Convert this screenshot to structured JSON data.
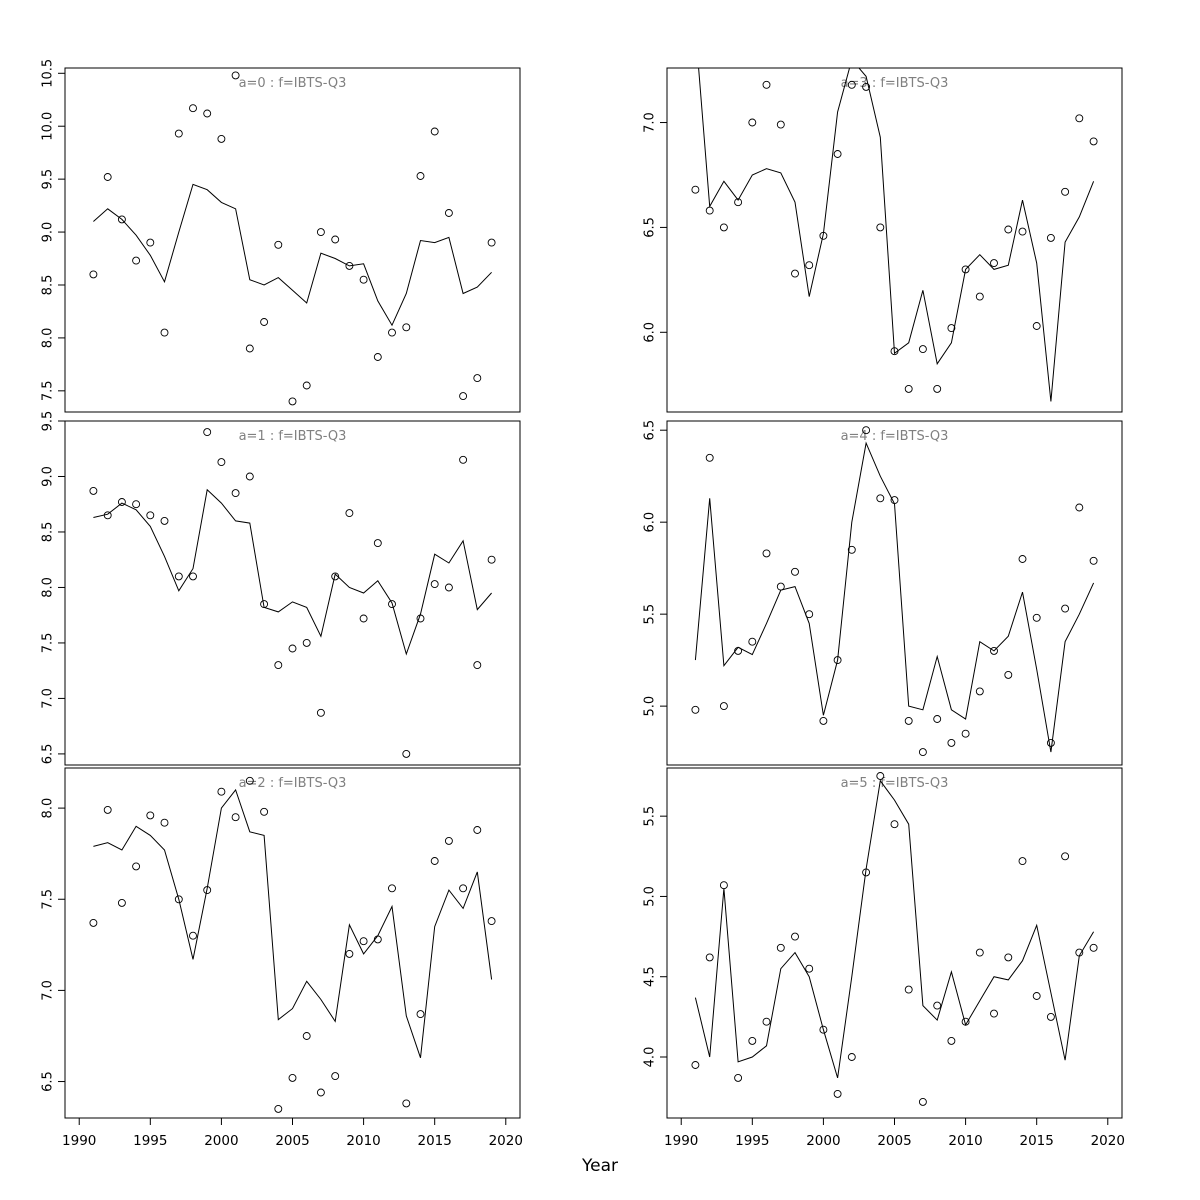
{
  "figure": {
    "background": "#ffffff",
    "line_color": "#000000",
    "point_color": "#000000",
    "title_color": "#808080",
    "axis_color": "#000000"
  },
  "chart_data": {
    "type": "line+scatter",
    "layout": "2 columns x 3 rows, panels ordered a=0..a=2 left column, a=3..a=5 right column",
    "xlabel": "Year",
    "xlim": [
      1989,
      2021
    ],
    "xticks": [
      "1990",
      "1995",
      "2000",
      "2005",
      "2010",
      "2015",
      "2020"
    ],
    "x": [
      1991,
      1992,
      1993,
      1994,
      1995,
      1996,
      1997,
      1998,
      1999,
      2000,
      2001,
      2002,
      2003,
      2004,
      2005,
      2006,
      2007,
      2008,
      2009,
      2010,
      2011,
      2012,
      2013,
      2014,
      2015,
      2016,
      2017,
      2018,
      2019
    ],
    "panels": [
      {
        "id": "a0",
        "title": "a=0 : f=IBTS-Q3",
        "ylim": [
          7.3,
          10.55
        ],
        "yticks": [
          "7.5",
          "8.0",
          "8.5",
          "9.0",
          "9.5",
          "10.0",
          "10.5"
        ],
        "points": [
          8.6,
          9.52,
          9.12,
          8.73,
          8.9,
          8.05,
          9.93,
          10.17,
          10.12,
          9.88,
          10.48,
          7.9,
          8.15,
          8.88,
          7.4,
          7.55,
          9.0,
          8.93,
          8.68,
          8.55,
          7.82,
          8.05,
          8.1,
          9.53,
          9.95,
          9.18,
          7.45,
          7.62,
          8.9
        ],
        "line": [
          9.1,
          9.22,
          9.12,
          8.97,
          8.78,
          8.53,
          9.0,
          9.45,
          9.4,
          9.28,
          9.22,
          8.55,
          8.5,
          8.57,
          8.45,
          8.33,
          8.8,
          8.75,
          8.68,
          8.7,
          8.35,
          8.12,
          8.42,
          8.92,
          8.9,
          8.95,
          8.42,
          8.48,
          8.62
        ]
      },
      {
        "id": "a1",
        "title": "a=1 : f=IBTS-Q3",
        "ylim": [
          6.4,
          9.5
        ],
        "yticks": [
          "6.5",
          "7.0",
          "7.5",
          "8.0",
          "8.5",
          "9.0",
          "9.5"
        ],
        "points": [
          8.87,
          8.65,
          8.77,
          8.75,
          8.65,
          8.6,
          8.1,
          8.1,
          9.4,
          9.13,
          8.85,
          9.0,
          7.85,
          7.3,
          7.45,
          7.5,
          6.87,
          8.1,
          8.67,
          7.72,
          8.4,
          7.85,
          6.5,
          7.72,
          8.03,
          8.0,
          9.15,
          7.3,
          8.25
        ],
        "line": [
          8.63,
          8.66,
          8.76,
          8.7,
          8.55,
          8.28,
          7.97,
          8.17,
          8.88,
          8.76,
          8.6,
          8.58,
          7.82,
          7.78,
          7.87,
          7.82,
          7.56,
          8.12,
          8.0,
          7.95,
          8.06,
          7.86,
          7.4,
          7.76,
          8.3,
          8.22,
          8.42,
          7.8,
          7.95
        ]
      },
      {
        "id": "a2",
        "title": "a=2 : f=IBTS-Q3",
        "ylim": [
          6.3,
          8.22
        ],
        "yticks": [
          "6.5",
          "7.0",
          "7.5",
          "8.0"
        ],
        "points": [
          7.37,
          7.99,
          7.48,
          7.68,
          7.96,
          7.92,
          7.5,
          7.3,
          7.55,
          8.09,
          7.95,
          8.15,
          7.98,
          6.35,
          6.52,
          6.75,
          6.44,
          6.53,
          7.2,
          7.27,
          7.28,
          7.56,
          6.38,
          6.87,
          7.71,
          7.82,
          7.56,
          7.88,
          7.38
        ],
        "line": [
          7.79,
          7.81,
          7.77,
          7.9,
          7.85,
          7.77,
          7.5,
          7.17,
          7.56,
          8.0,
          8.1,
          7.87,
          7.85,
          6.84,
          6.9,
          7.05,
          6.95,
          6.83,
          7.36,
          7.2,
          7.3,
          7.46,
          6.86,
          6.63,
          7.35,
          7.55,
          7.45,
          7.65,
          7.06
        ]
      },
      {
        "id": "a3",
        "title": "a=3 : f=IBTS-Q3",
        "ylim": [
          5.62,
          7.26
        ],
        "yticks": [
          "6.0",
          "6.5",
          "7.0"
        ],
        "points": [
          6.68,
          6.58,
          6.5,
          6.62,
          7.0,
          7.18,
          6.99,
          6.28,
          6.32,
          6.46,
          6.85,
          7.18,
          7.17,
          6.5,
          5.91,
          5.73,
          5.92,
          5.73,
          6.02,
          6.3,
          6.17,
          6.33,
          6.49,
          6.48,
          6.03,
          6.45,
          6.67,
          7.02,
          6.91
        ],
        "line": [
          7.45,
          6.6,
          6.72,
          6.63,
          6.75,
          6.78,
          6.76,
          6.62,
          6.17,
          6.47,
          7.05,
          7.3,
          7.22,
          6.93,
          5.9,
          5.95,
          6.2,
          5.85,
          5.95,
          6.3,
          6.37,
          6.3,
          6.32,
          6.63,
          6.33,
          5.67,
          6.43,
          6.55,
          6.72
        ]
      },
      {
        "id": "a4",
        "title": "a=4 : f=IBTS-Q3",
        "ylim": [
          4.68,
          6.55
        ],
        "yticks": [
          "5.0",
          "5.5",
          "6.0",
          "6.5"
        ],
        "points": [
          4.98,
          6.35,
          5.0,
          5.3,
          5.35,
          5.83,
          5.65,
          5.73,
          5.5,
          4.92,
          5.25,
          5.85,
          6.5,
          6.13,
          6.12,
          4.92,
          4.75,
          4.93,
          4.8,
          4.85,
          5.08,
          5.3,
          5.17,
          5.8,
          5.48,
          4.8,
          5.53,
          6.08,
          5.79
        ],
        "line": [
          5.25,
          6.13,
          5.22,
          5.32,
          5.28,
          5.45,
          5.63,
          5.65,
          5.45,
          4.95,
          5.25,
          6.0,
          6.43,
          6.25,
          6.1,
          5.0,
          4.98,
          5.27,
          4.98,
          4.93,
          5.35,
          5.3,
          5.38,
          5.62,
          5.2,
          4.75,
          5.35,
          5.5,
          5.67
        ]
      },
      {
        "id": "a5",
        "title": "a=5 : f=IBTS-Q3",
        "ylim": [
          3.62,
          5.8
        ],
        "yticks": [
          "4.0",
          "4.5",
          "5.0",
          "5.5"
        ],
        "points": [
          3.95,
          4.62,
          5.07,
          3.87,
          4.1,
          4.22,
          4.68,
          4.75,
          4.55,
          4.17,
          3.77,
          4.0,
          5.15,
          5.75,
          5.45,
          4.42,
          3.72,
          4.32,
          4.1,
          4.22,
          4.65,
          4.27,
          4.62,
          5.22,
          4.38,
          4.25,
          5.25,
          4.65,
          4.68
        ],
        "line": [
          4.37,
          4.0,
          5.05,
          3.97,
          4.0,
          4.07,
          4.55,
          4.65,
          4.5,
          4.17,
          3.87,
          4.5,
          5.17,
          5.72,
          5.6,
          5.45,
          4.32,
          4.23,
          4.53,
          4.2,
          4.35,
          4.5,
          4.48,
          4.6,
          4.82,
          4.4,
          3.98,
          4.63,
          4.78
        ]
      }
    ]
  }
}
